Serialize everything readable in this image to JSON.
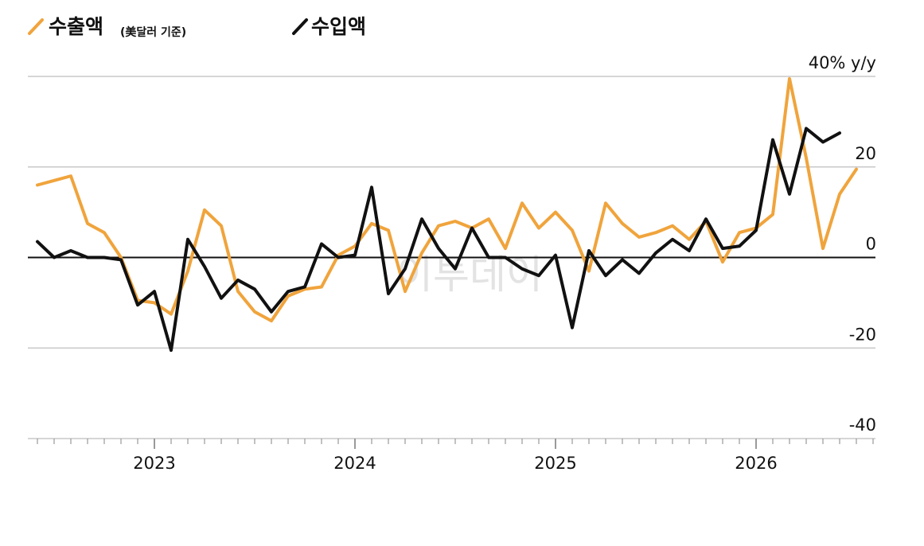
{
  "chart_data": {
    "type": "line",
    "unit_label": "40% y/y",
    "x_start": "2022-06",
    "x_tick_labels": [
      "2023",
      "2024",
      "2025",
      "2026"
    ],
    "y_ticks": [
      {
        "value": 40,
        "label": "40% y/y"
      },
      {
        "value": 20,
        "label": "20"
      },
      {
        "value": 0,
        "label": "0"
      },
      {
        "value": -20,
        "label": "-20"
      },
      {
        "value": -40,
        "label": "-40"
      }
    ],
    "ylim": [
      -40,
      40
    ],
    "grid": true,
    "legend_position": "top-left",
    "series": [
      {
        "name": "수출액",
        "name_note": "(美달러 기준)",
        "color": "#f0a43c",
        "values": [
          16,
          17,
          18,
          7.5,
          5.5,
          0,
          -9.5,
          -10,
          -12.5,
          -3,
          10.5,
          7,
          -7.5,
          -12,
          -14,
          -8.5,
          -7,
          -6.5,
          0.5,
          2.5,
          7.5,
          6,
          -7.5,
          1,
          7,
          8,
          6.5,
          8.5,
          2,
          12,
          6.5,
          10,
          6,
          -3,
          12,
          7.5,
          4.5,
          5.5,
          7,
          4,
          8,
          -1,
          5.5,
          6.5,
          9.5,
          39.5,
          22,
          2,
          14,
          19.5
        ]
      },
      {
        "name": "수입액",
        "color": "#111111",
        "values": [
          3.5,
          0,
          1.5,
          0,
          0,
          -0.5,
          -10.5,
          -7.5,
          -20.5,
          4,
          -2,
          -9,
          -5,
          -7,
          -12,
          -7.5,
          -6.5,
          3,
          0,
          0.5,
          15.5,
          -8,
          -2.5,
          8.5,
          2,
          -2.5,
          6.5,
          0,
          0,
          -2.5,
          -4,
          0.5,
          -15.5,
          1.5,
          -4,
          -0.5,
          -3.5,
          1,
          4,
          1.5,
          8.5,
          2,
          2.5,
          6,
          26,
          14,
          28.5,
          25.5,
          27.5
        ]
      }
    ]
  },
  "watermark": "이투데이"
}
